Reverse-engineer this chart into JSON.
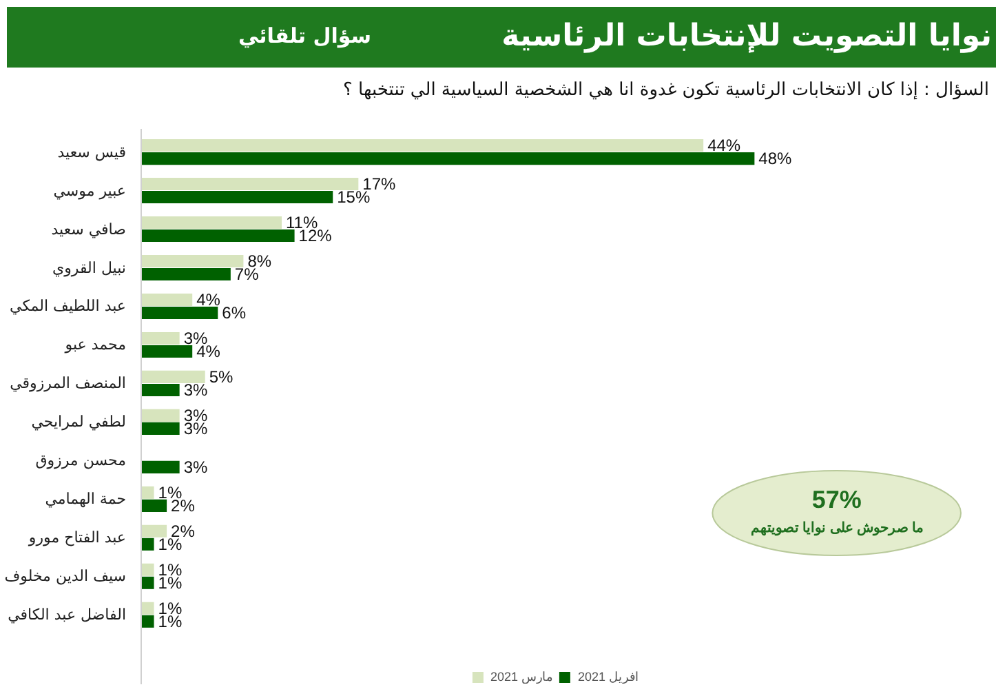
{
  "chart_data": {
    "type": "bar",
    "orientation": "horizontal",
    "title": "نوايا التصويت للإنتخابات الرئاسية",
    "subtitle": "سؤال تلقائي",
    "categories": [
      "قيس سعيد",
      "عبير موسي",
      "صافي سعيد",
      "نبيل القروي",
      "عبد اللطيف المكي",
      "محمد عبو",
      "المنصف المرزوقي",
      "لطفي لمرايحي",
      "محسن مرزوق",
      "حمة الهمامي",
      "عبد الفتاح مورو",
      "سيف الدين مخلوف",
      "الفاضل عبد الكافي"
    ],
    "series": [
      {
        "name": "مارس 2021",
        "color": "#d7e4bd",
        "values": [
          44,
          17,
          11,
          8,
          4,
          3,
          5,
          3,
          null,
          1,
          2,
          1,
          1
        ],
        "value_labels": [
          "44%",
          "17%",
          "11%",
          "8%",
          "4%",
          "3%",
          "5%",
          "3%",
          null,
          "1%",
          "2%",
          "1%",
          "1%"
        ]
      },
      {
        "name": "افريل 2021",
        "color": "#006100",
        "values": [
          48,
          15,
          12,
          7,
          6,
          4,
          3,
          3,
          3,
          2,
          1,
          1,
          1
        ],
        "value_labels": [
          "48%",
          "15%",
          "12%",
          "7%",
          "6%",
          "4%",
          "3%",
          "3%",
          "3%",
          "2%",
          "1%",
          "1%",
          "1%"
        ]
      }
    ],
    "annotations": [
      "السؤال : إذا كان الانتخابات الرئاسية تكون غدوة انا هي الشخصية السياسية الي تنتخبها ؟",
      "57%",
      "ما صرحوش على نوايا تصويتهم"
    ],
    "legend": "bottom",
    "tick_labels": "y",
    "grid": false
  }
}
